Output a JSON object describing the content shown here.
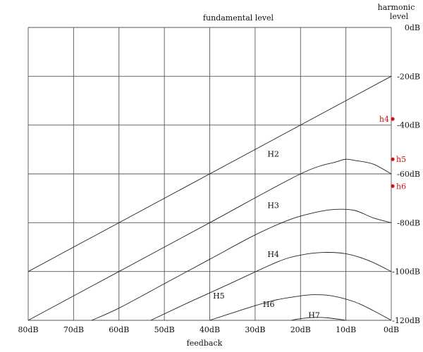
{
  "chart_data": {
    "type": "line",
    "title": "fundamental level",
    "xlabel": "feedback",
    "ylabel": "harmonic level",
    "ylabel_lines": [
      "harmonic",
      "level"
    ],
    "x_axis_reversed": true,
    "xlim": [
      80,
      0
    ],
    "ylim": [
      -120,
      0
    ],
    "x_ticks": [
      80,
      70,
      60,
      50,
      40,
      30,
      20,
      10,
      0
    ],
    "x_tick_labels": [
      "80dB",
      "70dB",
      "60dB",
      "50dB",
      "40dB",
      "30dB",
      "20dB",
      "10dB",
      "0dB"
    ],
    "y_ticks": [
      0,
      -20,
      -40,
      -60,
      -80,
      -100,
      -120
    ],
    "y_tick_labels": [
      "0dB",
      "-20dB",
      "-40dB",
      "-60dB",
      "-80dB",
      "-100dB",
      "-120dB"
    ],
    "grid": true,
    "series": [
      {
        "name": "H2",
        "label": "H2",
        "label_at": [
          26,
          -53
        ],
        "points": [
          [
            80,
            -100
          ],
          [
            0,
            -20
          ]
        ]
      },
      {
        "name": "H3",
        "label": "H3",
        "label_at": [
          26,
          -74
        ],
        "points": [
          [
            80,
            -120
          ],
          [
            60,
            -100
          ],
          [
            40,
            -80
          ],
          [
            20,
            -60
          ],
          [
            12,
            -55
          ],
          [
            10,
            -54
          ],
          [
            8,
            -54.5
          ],
          [
            4,
            -56
          ],
          [
            0,
            -60
          ]
        ]
      },
      {
        "name": "H4",
        "label": "H4",
        "label_at": [
          26,
          -94
        ],
        "points": [
          [
            66,
            -120
          ],
          [
            60,
            -115
          ],
          [
            50,
            -105
          ],
          [
            40,
            -95
          ],
          [
            30,
            -85
          ],
          [
            22,
            -78.5
          ],
          [
            16,
            -75.5
          ],
          [
            12,
            -74.5
          ],
          [
            8,
            -75
          ],
          [
            4,
            -78
          ],
          [
            0,
            -80
          ]
        ]
      },
      {
        "name": "H5",
        "label": "H5",
        "label_at": [
          38,
          -111
        ],
        "points": [
          [
            53,
            -120
          ],
          [
            45,
            -113
          ],
          [
            35,
            -104.5
          ],
          [
            25,
            -96
          ],
          [
            20,
            -93.3
          ],
          [
            15,
            -92.2
          ],
          [
            10,
            -92.7
          ],
          [
            5,
            -95.5
          ],
          [
            0,
            -100
          ]
        ]
      },
      {
        "name": "H6",
        "label": "H6",
        "label_at": [
          27,
          -114.5
        ],
        "points": [
          [
            40,
            -120
          ],
          [
            30,
            -114
          ],
          [
            25,
            -111.5
          ],
          [
            20,
            -110
          ],
          [
            17,
            -109.5
          ],
          [
            13,
            -110
          ],
          [
            8,
            -112.5
          ],
          [
            4,
            -116
          ],
          [
            0,
            -120
          ]
        ]
      },
      {
        "name": "H7",
        "label": "H7",
        "label_at": [
          17,
          -119
        ],
        "points": [
          [
            22,
            -120
          ],
          [
            20,
            -119.3
          ],
          [
            17,
            -118.8
          ],
          [
            14,
            -119
          ],
          [
            11,
            -119.7
          ],
          [
            10,
            -120
          ]
        ]
      }
    ],
    "markers": [
      {
        "label": "h4",
        "x": 0,
        "y": -37.5,
        "label_side": "left",
        "color": "#cc1111"
      },
      {
        "label": "h5",
        "x": 0,
        "y": -54,
        "label_side": "right",
        "color": "#cc1111"
      },
      {
        "label": "h6",
        "x": 0,
        "y": -65,
        "label_side": "right",
        "color": "#cc1111"
      }
    ]
  }
}
